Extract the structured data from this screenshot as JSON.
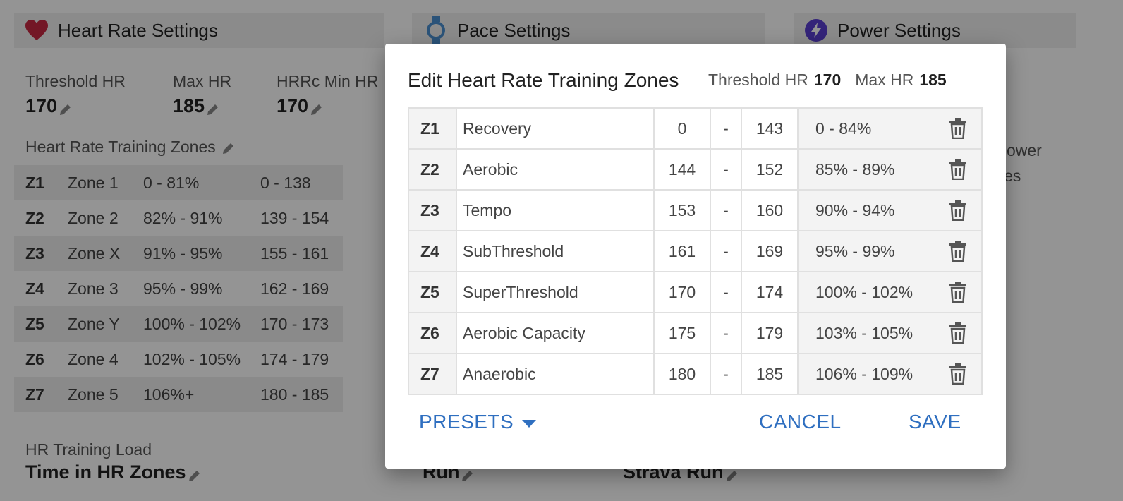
{
  "heart_rate_settings": {
    "title": "Heart Rate Settings",
    "icon": "heart-icon",
    "stats": [
      {
        "label": "Threshold HR",
        "value": "170"
      },
      {
        "label": "Max HR",
        "value": "185"
      },
      {
        "label": "HRRc Min HR",
        "value": "170"
      }
    ],
    "zones_label": "Heart Rate Training Zones",
    "zones": [
      {
        "id": "Z1",
        "name": "Zone 1",
        "pct": "0 - 81%",
        "range": "0 - 138"
      },
      {
        "id": "Z2",
        "name": "Zone 2",
        "pct": "82% - 91%",
        "range": "139 - 154"
      },
      {
        "id": "Z3",
        "name": "Zone X",
        "pct": "91% - 95%",
        "range": "155 - 161"
      },
      {
        "id": "Z4",
        "name": "Zone 3",
        "pct": "95% - 99%",
        "range": "162 - 169"
      },
      {
        "id": "Z5",
        "name": "Zone Y",
        "pct": "100% - 102%",
        "range": "170 - 173"
      },
      {
        "id": "Z6",
        "name": "Zone 4",
        "pct": "102% - 105%",
        "range": "174 - 179"
      },
      {
        "id": "Z7",
        "name": "Zone 5",
        "pct": "106%+",
        "range": "180 - 185"
      }
    ],
    "load_label": "HR Training Load",
    "load_value": "Time in HR Zones"
  },
  "pace_settings": {
    "title": "Pace Settings",
    "icon": "watch-icon",
    "bottom_value": "Run",
    "strava_value": "Strava Run"
  },
  "power_settings": {
    "title": "Power Settings",
    "icon": "lightning-icon",
    "desc_line1": "e power",
    "desc_line2": "vities"
  },
  "dialog": {
    "title": "Edit Heart Rate Training Zones",
    "threshold_label": "Threshold HR",
    "threshold_value": "170",
    "max_label": "Max HR",
    "max_value": "185",
    "zones": [
      {
        "id": "Z1",
        "name": "Recovery",
        "min": "0",
        "sep": "-",
        "max": "143",
        "pct": "0 - 84%"
      },
      {
        "id": "Z2",
        "name": "Aerobic",
        "min": "144",
        "sep": "-",
        "max": "152",
        "pct": "85% - 89%"
      },
      {
        "id": "Z3",
        "name": "Tempo",
        "min": "153",
        "sep": "-",
        "max": "160",
        "pct": "90% - 94%"
      },
      {
        "id": "Z4",
        "name": "SubThreshold",
        "min": "161",
        "sep": "-",
        "max": "169",
        "pct": "95% - 99%"
      },
      {
        "id": "Z5",
        "name": "SuperThreshold",
        "min": "170",
        "sep": "-",
        "max": "174",
        "pct": "100% - 102%"
      },
      {
        "id": "Z6",
        "name": "Aerobic Capacity",
        "min": "175",
        "sep": "-",
        "max": "179",
        "pct": "103% - 105%"
      },
      {
        "id": "Z7",
        "name": "Anaerobic",
        "min": "180",
        "sep": "-",
        "max": "185",
        "pct": "106% - 109%"
      }
    ],
    "presets_label": "PRESETS",
    "cancel_label": "CANCEL",
    "save_label": "SAVE"
  },
  "colors": {
    "accent": "#2f6fc0",
    "heart": "#c62842",
    "watch": "#4b8fd0",
    "power": "#5b3fd0"
  }
}
